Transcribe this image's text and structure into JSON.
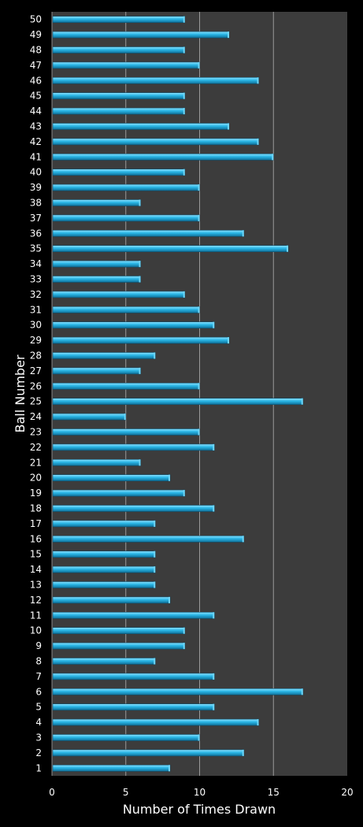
{
  "chart_data": {
    "type": "bar",
    "orientation": "horizontal",
    "xlabel": "Number of Times Drawn",
    "ylabel": "Ball Number",
    "xlim": [
      0,
      20
    ],
    "x_ticks": [
      "0",
      "5",
      "10",
      "15",
      "20"
    ],
    "grid": "vertical",
    "bar_color": "#29b6e6",
    "plot_background": "#3c3c3c",
    "background": "#000000",
    "categories": [
      "1",
      "2",
      "3",
      "4",
      "5",
      "6",
      "7",
      "8",
      "9",
      "10",
      "11",
      "12",
      "13",
      "14",
      "15",
      "16",
      "17",
      "18",
      "19",
      "20",
      "21",
      "22",
      "23",
      "24",
      "25",
      "26",
      "27",
      "28",
      "29",
      "30",
      "31",
      "32",
      "33",
      "34",
      "35",
      "36",
      "37",
      "38",
      "39",
      "40",
      "41",
      "42",
      "43",
      "44",
      "45",
      "46",
      "47",
      "48",
      "49",
      "50"
    ],
    "values": [
      8,
      13,
      10,
      14,
      11,
      17,
      11,
      7,
      9,
      9,
      11,
      8,
      7,
      7,
      7,
      13,
      7,
      11,
      9,
      8,
      6,
      11,
      10,
      5,
      17,
      10,
      6,
      7,
      12,
      11,
      10,
      9,
      6,
      6,
      16,
      13,
      10,
      6,
      10,
      9,
      15,
      14,
      12,
      9,
      9,
      14,
      10,
      9,
      12,
      9
    ]
  }
}
